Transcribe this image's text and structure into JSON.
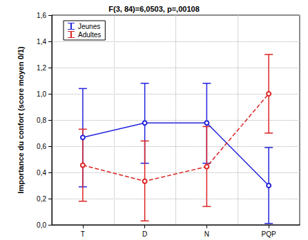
{
  "chart_data": {
    "type": "line",
    "title": "F(3, 84)=6,0503, p=,00108",
    "y_label": "Importance du confort (score moyen 0/1)",
    "categories": [
      "T",
      "D",
      "N",
      "PQP"
    ],
    "series": [
      {
        "name": "Jeunes",
        "color": "#2222dd",
        "line_style": "solid",
        "marker": "circle",
        "values": [
          0.667,
          0.778,
          0.778,
          0.3
        ],
        "error_low": [
          0.29,
          0.47,
          0.47,
          0.01
        ],
        "error_high": [
          1.04,
          1.08,
          1.08,
          0.59
        ]
      },
      {
        "name": "Adultes",
        "color": "#dd2222",
        "line_style": "dashed",
        "marker": "circle",
        "values": [
          0.455,
          0.333,
          0.444,
          1.0
        ],
        "error_low": [
          0.18,
          0.03,
          0.14,
          0.7
        ],
        "error_high": [
          0.73,
          0.64,
          0.75,
          1.3
        ]
      }
    ],
    "ylim": [
      0,
      1.6
    ],
    "yticks": [
      {
        "value": 0,
        "label": "0,0"
      },
      {
        "value": 0.2,
        "label": "0,2"
      },
      {
        "value": 0.4,
        "label": "0,4"
      },
      {
        "value": 0.6,
        "label": "0,6"
      },
      {
        "value": 0.8,
        "label": "0,8"
      },
      {
        "value": 1.0,
        "label": "1,0"
      },
      {
        "value": 1.2,
        "label": "1,2"
      },
      {
        "value": 1.4,
        "label": "1,4"
      },
      {
        "value": 1.6,
        "label": "1,6"
      }
    ],
    "grid": true,
    "legend": "top-left"
  }
}
